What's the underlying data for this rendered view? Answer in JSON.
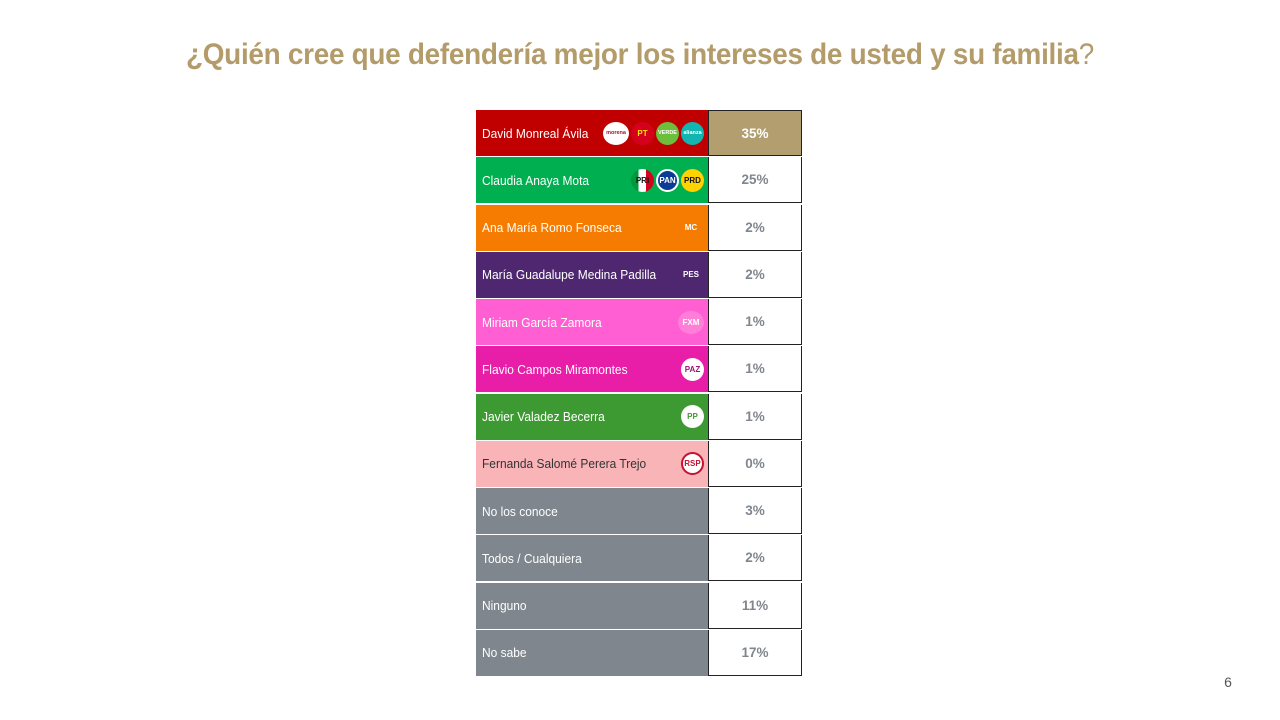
{
  "title": "¿Quién cree que defendería mejor los intereses de usted y su familia",
  "title_q": "?",
  "page_number": "6",
  "chart_data": {
    "type": "table",
    "title": "¿Quién cree que defendería mejor los intereses de usted y su familia?",
    "rows": [
      {
        "label": "David Monreal Ávila",
        "value": "35%",
        "pct": 35,
        "color": "#c00000",
        "value_bg": "#b29e6e",
        "value_color": "#ffffff",
        "logos": [
          "morena-logo-icon",
          "pt-logo-icon",
          "verde-logo-icon",
          "nueva-alianza-logo-icon"
        ]
      },
      {
        "label": "Claudia Anaya Mota",
        "value": "25%",
        "pct": 25,
        "color": "#00b050",
        "logos": [
          "pri-logo-icon",
          "pan-logo-icon",
          "prd-logo-icon"
        ]
      },
      {
        "label": "Ana María Romo Fonseca",
        "value": "2%",
        "pct": 2,
        "color": "#f57c00",
        "logos": [
          "movimiento-ciudadano-logo-icon"
        ]
      },
      {
        "label": "María Guadalupe Medina Padilla",
        "value": "2%",
        "pct": 2,
        "color": "#4f2770",
        "logos": [
          "pes-logo-icon"
        ]
      },
      {
        "label": "Miriam García Zamora",
        "value": "1%",
        "pct": 1,
        "color": "#ff5fd3",
        "logos": [
          "fuerza-mexico-logo-icon"
        ]
      },
      {
        "label": "Flavio Campos Miramontes",
        "value": "1%",
        "pct": 1,
        "color": "#e91ea8",
        "logos": [
          "paz-logo-icon"
        ]
      },
      {
        "label": "Javier Valadez Becerra",
        "value": "1%",
        "pct": 1,
        "color": "#3d9a32",
        "logos": [
          "pp-logo-icon"
        ]
      },
      {
        "label": "Fernanda Salomé Perera Trejo",
        "value": "0%",
        "pct": 0,
        "color": "#f9b4b8",
        "text_color": "#333333",
        "logos": [
          "rsp-logo-icon"
        ]
      },
      {
        "label": "No los conoce",
        "value": "3%",
        "pct": 3,
        "color": "#7f868d",
        "logos": []
      },
      {
        "label": "Todos / Cualquiera",
        "value": "2%",
        "pct": 2,
        "color": "#7f868d",
        "logos": []
      },
      {
        "label": "Ninguno",
        "value": "11%",
        "pct": 11,
        "color": "#7f868d",
        "logos": []
      },
      {
        "label": "No sabe",
        "value": "17%",
        "pct": 17,
        "color": "#7f868d",
        "logos": []
      }
    ]
  }
}
